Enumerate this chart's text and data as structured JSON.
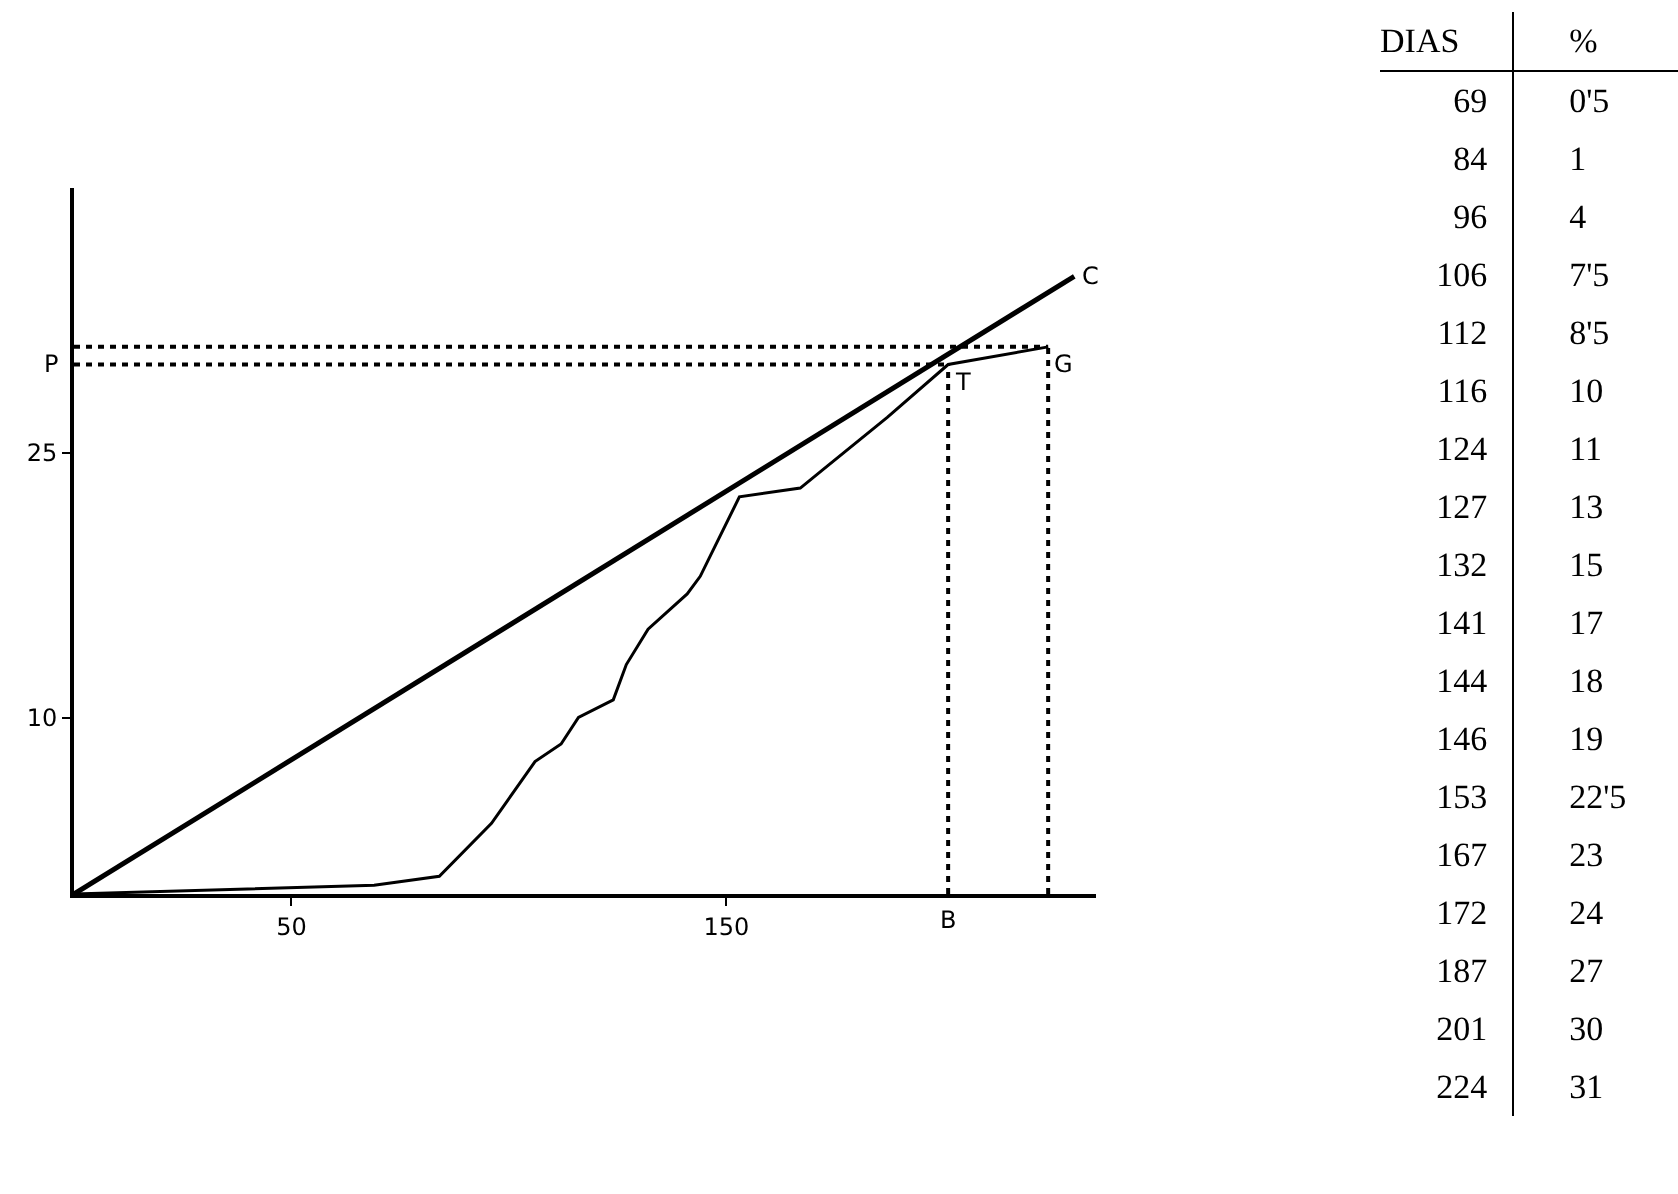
{
  "chart_data": [
    {
      "type": "line",
      "xlim": [
        0,
        235
      ],
      "ylim": [
        0,
        40
      ],
      "xticks": [
        50,
        150
      ],
      "yticks": [
        10,
        25
      ],
      "grid": false,
      "legend": false,
      "marker": "none",
      "line_style": "solid",
      "series": [
        {
          "name": "C",
          "color": "#000000",
          "x": [
            0,
            230
          ],
          "values": [
            0,
            35
          ]
        },
        {
          "color": "#000000",
          "x": [
            0,
            69,
            84,
            96,
            106,
            112,
            116,
            124,
            127,
            132,
            141,
            144,
            146,
            153,
            167,
            172,
            187,
            201,
            224
          ],
          "values": [
            0,
            0.5,
            1,
            4,
            7.5,
            8.5,
            10,
            11,
            13,
            15,
            17,
            18,
            19,
            22.5,
            23,
            24,
            27,
            30,
            31
          ]
        }
      ],
      "ref_lines": [
        {
          "axis": "y",
          "value": 30,
          "label": "P",
          "line_style": "dotted"
        },
        {
          "axis": "y",
          "value": 31,
          "line_style": "dotted"
        },
        {
          "axis": "x",
          "value": 201,
          "label": "B",
          "line_style": "dotted"
        },
        {
          "axis": "x",
          "value": 224,
          "line_style": "dotted"
        }
      ],
      "annotations": [
        {
          "text": "T",
          "x": 201,
          "y": 30
        },
        {
          "text": "G",
          "x": 224,
          "y": 31
        }
      ]
    },
    {
      "type": "other",
      "annotations": [
        "DIAS",
        "%",
        "69",
        "0'5",
        "84",
        "1",
        "96",
        "4",
        "106",
        "7'5",
        "112",
        "8'5",
        "116",
        "10",
        "124",
        "11",
        "127",
        "13",
        "132",
        "15",
        "141",
        "17",
        "144",
        "18",
        "146",
        "19",
        "153",
        "22'5",
        "167",
        "23",
        "172",
        "24",
        "187",
        "27",
        "201",
        "30",
        "224",
        "31"
      ]
    }
  ]
}
